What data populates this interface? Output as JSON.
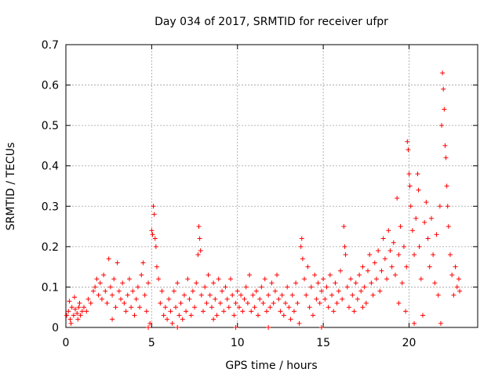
{
  "chart_data": {
    "type": "scatter",
    "title": "Day 034 of 2017, SRMTID for receiver ufpr",
    "xlabel": "GPS time / hours",
    "ylabel": "SRMTID / TECUs",
    "xlim": [
      0,
      24
    ],
    "ylim": [
      0,
      0.7
    ],
    "xticks": [
      "0",
      "5",
      "10",
      "15",
      "20"
    ],
    "yticks": [
      "0",
      "0.1",
      "0.2",
      "0.3",
      "0.4",
      "0.5",
      "0.6",
      "0.7"
    ],
    "grid": true,
    "marker": "+",
    "color": "#ff0000",
    "series": [
      {
        "name": "SRMTID",
        "points": [
          [
            0.05,
            0.03
          ],
          [
            0.15,
            0.04
          ],
          [
            0.25,
            0.02
          ],
          [
            0.35,
            0.05
          ],
          [
            0.45,
            0.03
          ],
          [
            0.55,
            0.045
          ],
          [
            0.65,
            0.035
          ],
          [
            0.75,
            0.05
          ],
          [
            0.85,
            0.03
          ],
          [
            0.95,
            0.04
          ],
          [
            0.2,
            0.065
          ],
          [
            0.5,
            0.075
          ],
          [
            0.8,
            0.06
          ],
          [
            0.3,
            0.01
          ],
          [
            0.7,
            0.02
          ],
          [
            1.05,
            0.05
          ],
          [
            1.2,
            0.04
          ],
          [
            1.3,
            0.07
          ],
          [
            1.45,
            0.06
          ],
          [
            1.6,
            0.09
          ],
          [
            1.7,
            0.1
          ],
          [
            1.8,
            0.12
          ],
          [
            1.9,
            0.08
          ],
          [
            2.0,
            0.11
          ],
          [
            2.1,
            0.07
          ],
          [
            2.2,
            0.13
          ],
          [
            2.3,
            0.09
          ],
          [
            2.4,
            0.06
          ],
          [
            2.5,
            0.17
          ],
          [
            2.6,
            0.1
          ],
          [
            2.7,
            0.08
          ],
          [
            2.8,
            0.12
          ],
          [
            2.9,
            0.05
          ],
          [
            3.0,
            0.16
          ],
          [
            3.1,
            0.09
          ],
          [
            3.2,
            0.07
          ],
          [
            3.3,
            0.11
          ],
          [
            3.4,
            0.06
          ],
          [
            3.5,
            0.04
          ],
          [
            3.6,
            0.08
          ],
          [
            3.7,
            0.12
          ],
          [
            3.8,
            0.05
          ],
          [
            3.9,
            0.09
          ],
          [
            4.0,
            0.03
          ],
          [
            4.1,
            0.07
          ],
          [
            4.2,
            0.1
          ],
          [
            4.3,
            0.05
          ],
          [
            4.4,
            0.13
          ],
          [
            4.5,
            0.16
          ],
          [
            4.6,
            0.08
          ],
          [
            4.7,
            0.04
          ],
          [
            4.8,
            0.11
          ],
          [
            4.9,
            0.01
          ],
          [
            5.0,
            0.24
          ],
          [
            5.05,
            0.23
          ],
          [
            5.1,
            0.3
          ],
          [
            5.15,
            0.28
          ],
          [
            5.2,
            0.22
          ],
          [
            5.25,
            0.2
          ],
          [
            5.3,
            0.15
          ],
          [
            5.4,
            0.12
          ],
          [
            5.5,
            0.06
          ],
          [
            5.6,
            0.09
          ],
          [
            5.7,
            0.03
          ],
          [
            5.8,
            0.05
          ],
          [
            5.9,
            0.02
          ],
          [
            6.0,
            0.07
          ],
          [
            6.1,
            0.04
          ],
          [
            6.2,
            0.01
          ],
          [
            6.3,
            0.09
          ],
          [
            6.4,
            0.05
          ],
          [
            6.5,
            0.11
          ],
          [
            6.6,
            0.03
          ],
          [
            6.7,
            0.06
          ],
          [
            6.8,
            0.02
          ],
          [
            6.9,
            0.08
          ],
          [
            7.0,
            0.04
          ],
          [
            7.1,
            0.12
          ],
          [
            7.2,
            0.07
          ],
          [
            7.3,
            0.03
          ],
          [
            7.4,
            0.09
          ],
          [
            7.5,
            0.05
          ],
          [
            7.6,
            0.11
          ],
          [
            7.7,
            0.18
          ],
          [
            7.75,
            0.25
          ],
          [
            7.8,
            0.22
          ],
          [
            7.85,
            0.19
          ],
          [
            7.9,
            0.08
          ],
          [
            8.0,
            0.04
          ],
          [
            8.1,
            0.1
          ],
          [
            8.2,
            0.06
          ],
          [
            8.3,
            0.13
          ],
          [
            8.4,
            0.08
          ],
          [
            8.5,
            0.05
          ],
          [
            8.6,
            0.11
          ],
          [
            8.7,
            0.07
          ],
          [
            8.8,
            0.03
          ],
          [
            8.9,
            0.12
          ],
          [
            9.0,
            0.06
          ],
          [
            9.1,
            0.09
          ],
          [
            9.2,
            0.04
          ],
          [
            9.3,
            0.1
          ],
          [
            9.4,
            0.07
          ],
          [
            9.5,
            0.05
          ],
          [
            9.6,
            0.12
          ],
          [
            9.7,
            0.08
          ],
          [
            9.8,
            0.03
          ],
          [
            9.9,
            0.06
          ],
          [
            10.0,
            0.09
          ],
          [
            10.1,
            0.05
          ],
          [
            10.2,
            0.08
          ],
          [
            10.3,
            0.04
          ],
          [
            10.4,
            0.07
          ],
          [
            10.5,
            0.1
          ],
          [
            10.6,
            0.06
          ],
          [
            10.7,
            0.13
          ],
          [
            10.8,
            0.04
          ],
          [
            10.9,
            0.08
          ],
          [
            11.0,
            0.05
          ],
          [
            11.1,
            0.09
          ],
          [
            11.2,
            0.03
          ],
          [
            11.3,
            0.07
          ],
          [
            11.4,
            0.1
          ],
          [
            11.5,
            0.06
          ],
          [
            11.6,
            0.12
          ],
          [
            11.7,
            0.04
          ],
          [
            11.8,
            0.08
          ],
          [
            11.9,
            0.05
          ],
          [
            12.0,
            0.11
          ],
          [
            12.1,
            0.06
          ],
          [
            12.2,
            0.09
          ],
          [
            12.3,
            0.13
          ],
          [
            12.4,
            0.07
          ],
          [
            12.5,
            0.04
          ],
          [
            12.6,
            0.08
          ],
          [
            12.7,
            0.03
          ],
          [
            12.8,
            0.06
          ],
          [
            12.9,
            0.1
          ],
          [
            13.0,
            0.05
          ],
          [
            13.1,
            0.02
          ],
          [
            13.2,
            0.08
          ],
          [
            13.3,
            0.04
          ],
          [
            13.4,
            0.11
          ],
          [
            13.5,
            0.06
          ],
          [
            13.6,
            0.01
          ],
          [
            13.7,
            0.2
          ],
          [
            13.75,
            0.22
          ],
          [
            13.8,
            0.17
          ],
          [
            13.9,
            0.12
          ],
          [
            14.0,
            0.08
          ],
          [
            14.1,
            0.15
          ],
          [
            14.2,
            0.05
          ],
          [
            14.3,
            0.1
          ],
          [
            14.4,
            0.03
          ],
          [
            14.5,
            0.13
          ],
          [
            14.6,
            0.07
          ],
          [
            14.7,
            0.11
          ],
          [
            14.8,
            0.06
          ],
          [
            14.9,
            0.09
          ],
          [
            15.0,
            0.12
          ],
          [
            15.1,
            0.07
          ],
          [
            15.2,
            0.1
          ],
          [
            15.3,
            0.05
          ],
          [
            15.4,
            0.13
          ],
          [
            15.5,
            0.08
          ],
          [
            15.6,
            0.04
          ],
          [
            15.7,
            0.11
          ],
          [
            15.8,
            0.06
          ],
          [
            15.9,
            0.09
          ],
          [
            16.0,
            0.14
          ],
          [
            16.1,
            0.07
          ],
          [
            16.2,
            0.25
          ],
          [
            16.25,
            0.2
          ],
          [
            16.3,
            0.18
          ],
          [
            16.4,
            0.1
          ],
          [
            16.5,
            0.05
          ],
          [
            16.6,
            0.12
          ],
          [
            16.7,
            0.08
          ],
          [
            16.8,
            0.04
          ],
          [
            16.9,
            0.11
          ],
          [
            17.0,
            0.07
          ],
          [
            17.1,
            0.13
          ],
          [
            17.2,
            0.09
          ],
          [
            17.3,
            0.15
          ],
          [
            17.4,
            0.1
          ],
          [
            17.5,
            0.06
          ],
          [
            17.6,
            0.14
          ],
          [
            17.7,
            0.18
          ],
          [
            17.8,
            0.11
          ],
          [
            17.9,
            0.08
          ],
          [
            18.0,
            0.16
          ],
          [
            18.1,
            0.12
          ],
          [
            18.2,
            0.19
          ],
          [
            18.3,
            0.09
          ],
          [
            18.4,
            0.14
          ],
          [
            18.5,
            0.22
          ],
          [
            18.6,
            0.17
          ],
          [
            18.7,
            0.12
          ],
          [
            18.8,
            0.24
          ],
          [
            18.9,
            0.19
          ],
          [
            19.0,
            0.15
          ],
          [
            19.1,
            0.21
          ],
          [
            19.2,
            0.13
          ],
          [
            19.3,
            0.32
          ],
          [
            19.4,
            0.18
          ],
          [
            19.5,
            0.25
          ],
          [
            19.6,
            0.11
          ],
          [
            19.7,
            0.2
          ],
          [
            19.8,
            0.04
          ],
          [
            19.85,
            0.15
          ],
          [
            19.9,
            0.46
          ],
          [
            19.95,
            0.44
          ],
          [
            20.0,
            0.38
          ],
          [
            20.05,
            0.35
          ],
          [
            20.1,
            0.3
          ],
          [
            20.2,
            0.24
          ],
          [
            20.3,
            0.18
          ],
          [
            20.4,
            0.27
          ],
          [
            20.5,
            0.38
          ],
          [
            20.55,
            0.34
          ],
          [
            20.6,
            0.2
          ],
          [
            20.7,
            0.12
          ],
          [
            20.8,
            0.03
          ],
          [
            20.9,
            0.26
          ],
          [
            21.0,
            0.31
          ],
          [
            21.1,
            0.22
          ],
          [
            21.2,
            0.15
          ],
          [
            21.3,
            0.27
          ],
          [
            21.4,
            0.18
          ],
          [
            21.5,
            0.11
          ],
          [
            21.6,
            0.23
          ],
          [
            21.7,
            0.08
          ],
          [
            21.8,
            0.3
          ],
          [
            21.85,
            0.01
          ],
          [
            21.9,
            0.5
          ],
          [
            21.95,
            0.63
          ],
          [
            22.0,
            0.59
          ],
          [
            22.05,
            0.54
          ],
          [
            22.1,
            0.45
          ],
          [
            22.15,
            0.42
          ],
          [
            22.2,
            0.35
          ],
          [
            22.25,
            0.3
          ],
          [
            22.3,
            0.25
          ],
          [
            22.4,
            0.18
          ],
          [
            22.5,
            0.13
          ],
          [
            22.6,
            0.08
          ],
          [
            22.7,
            0.15
          ],
          [
            22.8,
            0.1
          ],
          [
            22.9,
            0.12
          ],
          [
            22.95,
            0.09
          ],
          [
            6.5,
            0.0
          ],
          [
            9.9,
            0.0
          ],
          [
            14.9,
            0.0
          ],
          [
            4.8,
            0.0
          ],
          [
            2.7,
            0.02
          ],
          [
            11.8,
            0.0
          ],
          [
            19.4,
            0.06
          ],
          [
            20.3,
            0.01
          ],
          [
            8.6,
            0.02
          ],
          [
            17.3,
            0.05
          ]
        ]
      }
    ]
  }
}
